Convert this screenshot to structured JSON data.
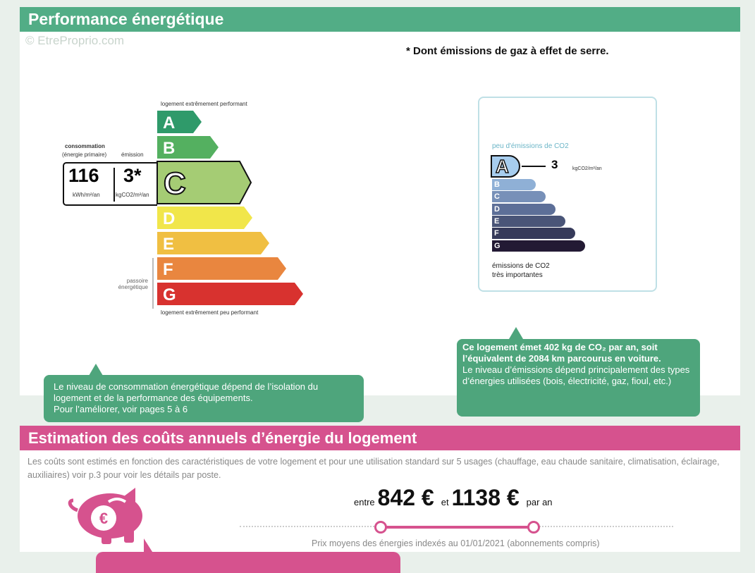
{
  "watermark": "© EtreProprio.com",
  "performance": {
    "title": "Performance énergétique",
    "note": "* Dont émissions de gaz à effet de serre.",
    "energy_label": {
      "top_label": "logement extrêmement performant",
      "bottom_label": "logement extrêmement peu performant",
      "passoire_label": "passoire énergétique",
      "consumption_label": "consommation",
      "consumption_sublabel": "(énergie primaire)",
      "emission_label": "émission",
      "consumption_value": "116",
      "consumption_unit": "kWh/m²/an",
      "emission_value": "3*",
      "emission_unit": "kgCO2/m²/an",
      "current_class": "C",
      "classes": [
        {
          "letter": "A",
          "color": "#2f9a6a"
        },
        {
          "letter": "B",
          "color": "#54b060"
        },
        {
          "letter": "C",
          "color": "#a5cc74"
        },
        {
          "letter": "D",
          "color": "#f1e64a"
        },
        {
          "letter": "E",
          "color": "#f0bf42"
        },
        {
          "letter": "F",
          "color": "#e9863f"
        },
        {
          "letter": "G",
          "color": "#d8322f"
        }
      ]
    },
    "co2_label": {
      "top_label": "peu d'émissions de CO2",
      "bottom_label_1": "émissions de CO2",
      "bottom_label_2": "très importantes",
      "current_class": "A",
      "value": "3",
      "unit": "kgCO2/m²/an",
      "classes": [
        {
          "letter": "B",
          "color": "#8fb0d6"
        },
        {
          "letter": "C",
          "color": "#7790b8"
        },
        {
          "letter": "D",
          "color": "#5d6f98"
        },
        {
          "letter": "E",
          "color": "#4a5578"
        },
        {
          "letter": "F",
          "color": "#363a5a"
        },
        {
          "letter": "G",
          "color": "#231a34"
        }
      ]
    },
    "callout_left": {
      "line1": "Le niveau de consommation énergétique dépend de l’isolation du logement et de la performance des équipements.",
      "line2": "Pour l’améliorer, voir pages 5 à 6"
    },
    "callout_right": {
      "bold": "Ce logement émet 402  kg de CO₂ par an, soit l’équivalent de 2084 km parcourus en voiture.",
      "text": "Le niveau d’émissions dépend principalement des types d’énergies utilisées (bois, électricité, gaz, fioul, etc.)"
    }
  },
  "costs": {
    "title": "Estimation des coûts annuels d’énergie du logement",
    "description": "Les coûts sont estimés en fonction des caractéristiques de votre logement et pour une utilisation standard sur 5 usages (chauffage, eau chaude sanitaire, climatisation, éclairage, auxiliaires) voir p.3 pour voir les détails par poste.",
    "between": "entre",
    "min": "842 €",
    "and": "et",
    "max": "1138 €",
    "per_year": "par an",
    "footnote": "Prix moyens des énergies indexés au 01/01/2021  (abonnements compris)",
    "accent": "#d6528e"
  }
}
